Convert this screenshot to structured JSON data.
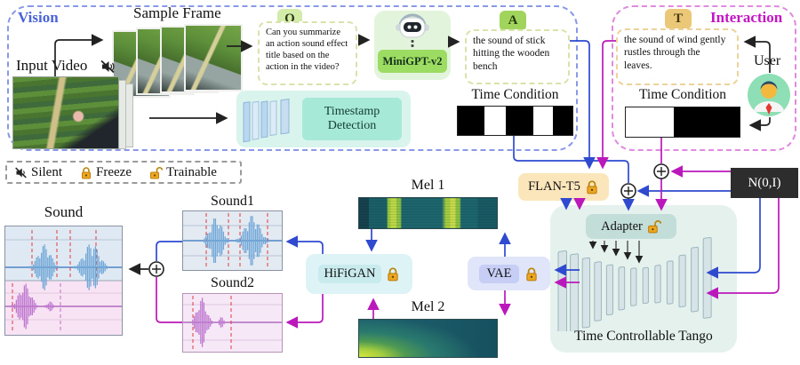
{
  "vision": {
    "label": "Vision",
    "sample_frame": "Sample Frame",
    "input_video": "Input Video",
    "question_badge": "Q",
    "question": "Can you summarize an action sound effect title based on the action in the video?",
    "minigpt": "MiniGPT-v2",
    "answer_badge": "A",
    "answer": "the sound of stick hitting the wooden bench",
    "timestamp_detection": "Timestamp Detection",
    "time_condition": "Time Condition"
  },
  "interaction": {
    "label": "Interaction",
    "text_badge": "T",
    "text": "the sound of wind gently rustles through the leaves.",
    "user": "User",
    "time_condition": "Time Condition"
  },
  "legend": {
    "silent": "Silent",
    "freeze": "Freeze",
    "trainable": "Trainable"
  },
  "model": {
    "flan_t5": "FLAN-T5",
    "noise": "N(0,I)",
    "adapter": "Adapter",
    "tango": "Time Controllable Tango",
    "vae": "VAE",
    "hifigan": "HiFiGAN",
    "mel1": "Mel 1",
    "mel2": "Mel 2"
  },
  "outputs": {
    "sound": "Sound",
    "sound1": "Sound1",
    "sound2": "Sound2"
  },
  "icons": {
    "muted_speaker": "muted-speaker-icon",
    "lock_closed": "lock-closed-icon",
    "lock_open": "lock-open-icon",
    "robot": "robot-icon",
    "user_avatar": "user-avatar-icon",
    "circled_plus": "circled-plus-icon"
  },
  "colors": {
    "vision_border": "#8a98e8",
    "vision_text": "#4a63d8",
    "interaction_border": "#e08ae0",
    "interaction_text": "#c414c4",
    "flow_blue": "#2f49cf",
    "flow_magenta": "#bb18bb",
    "badge_green": "#a0d45c",
    "badge_tan": "#eac878",
    "lock_gold": "#eda81f"
  }
}
